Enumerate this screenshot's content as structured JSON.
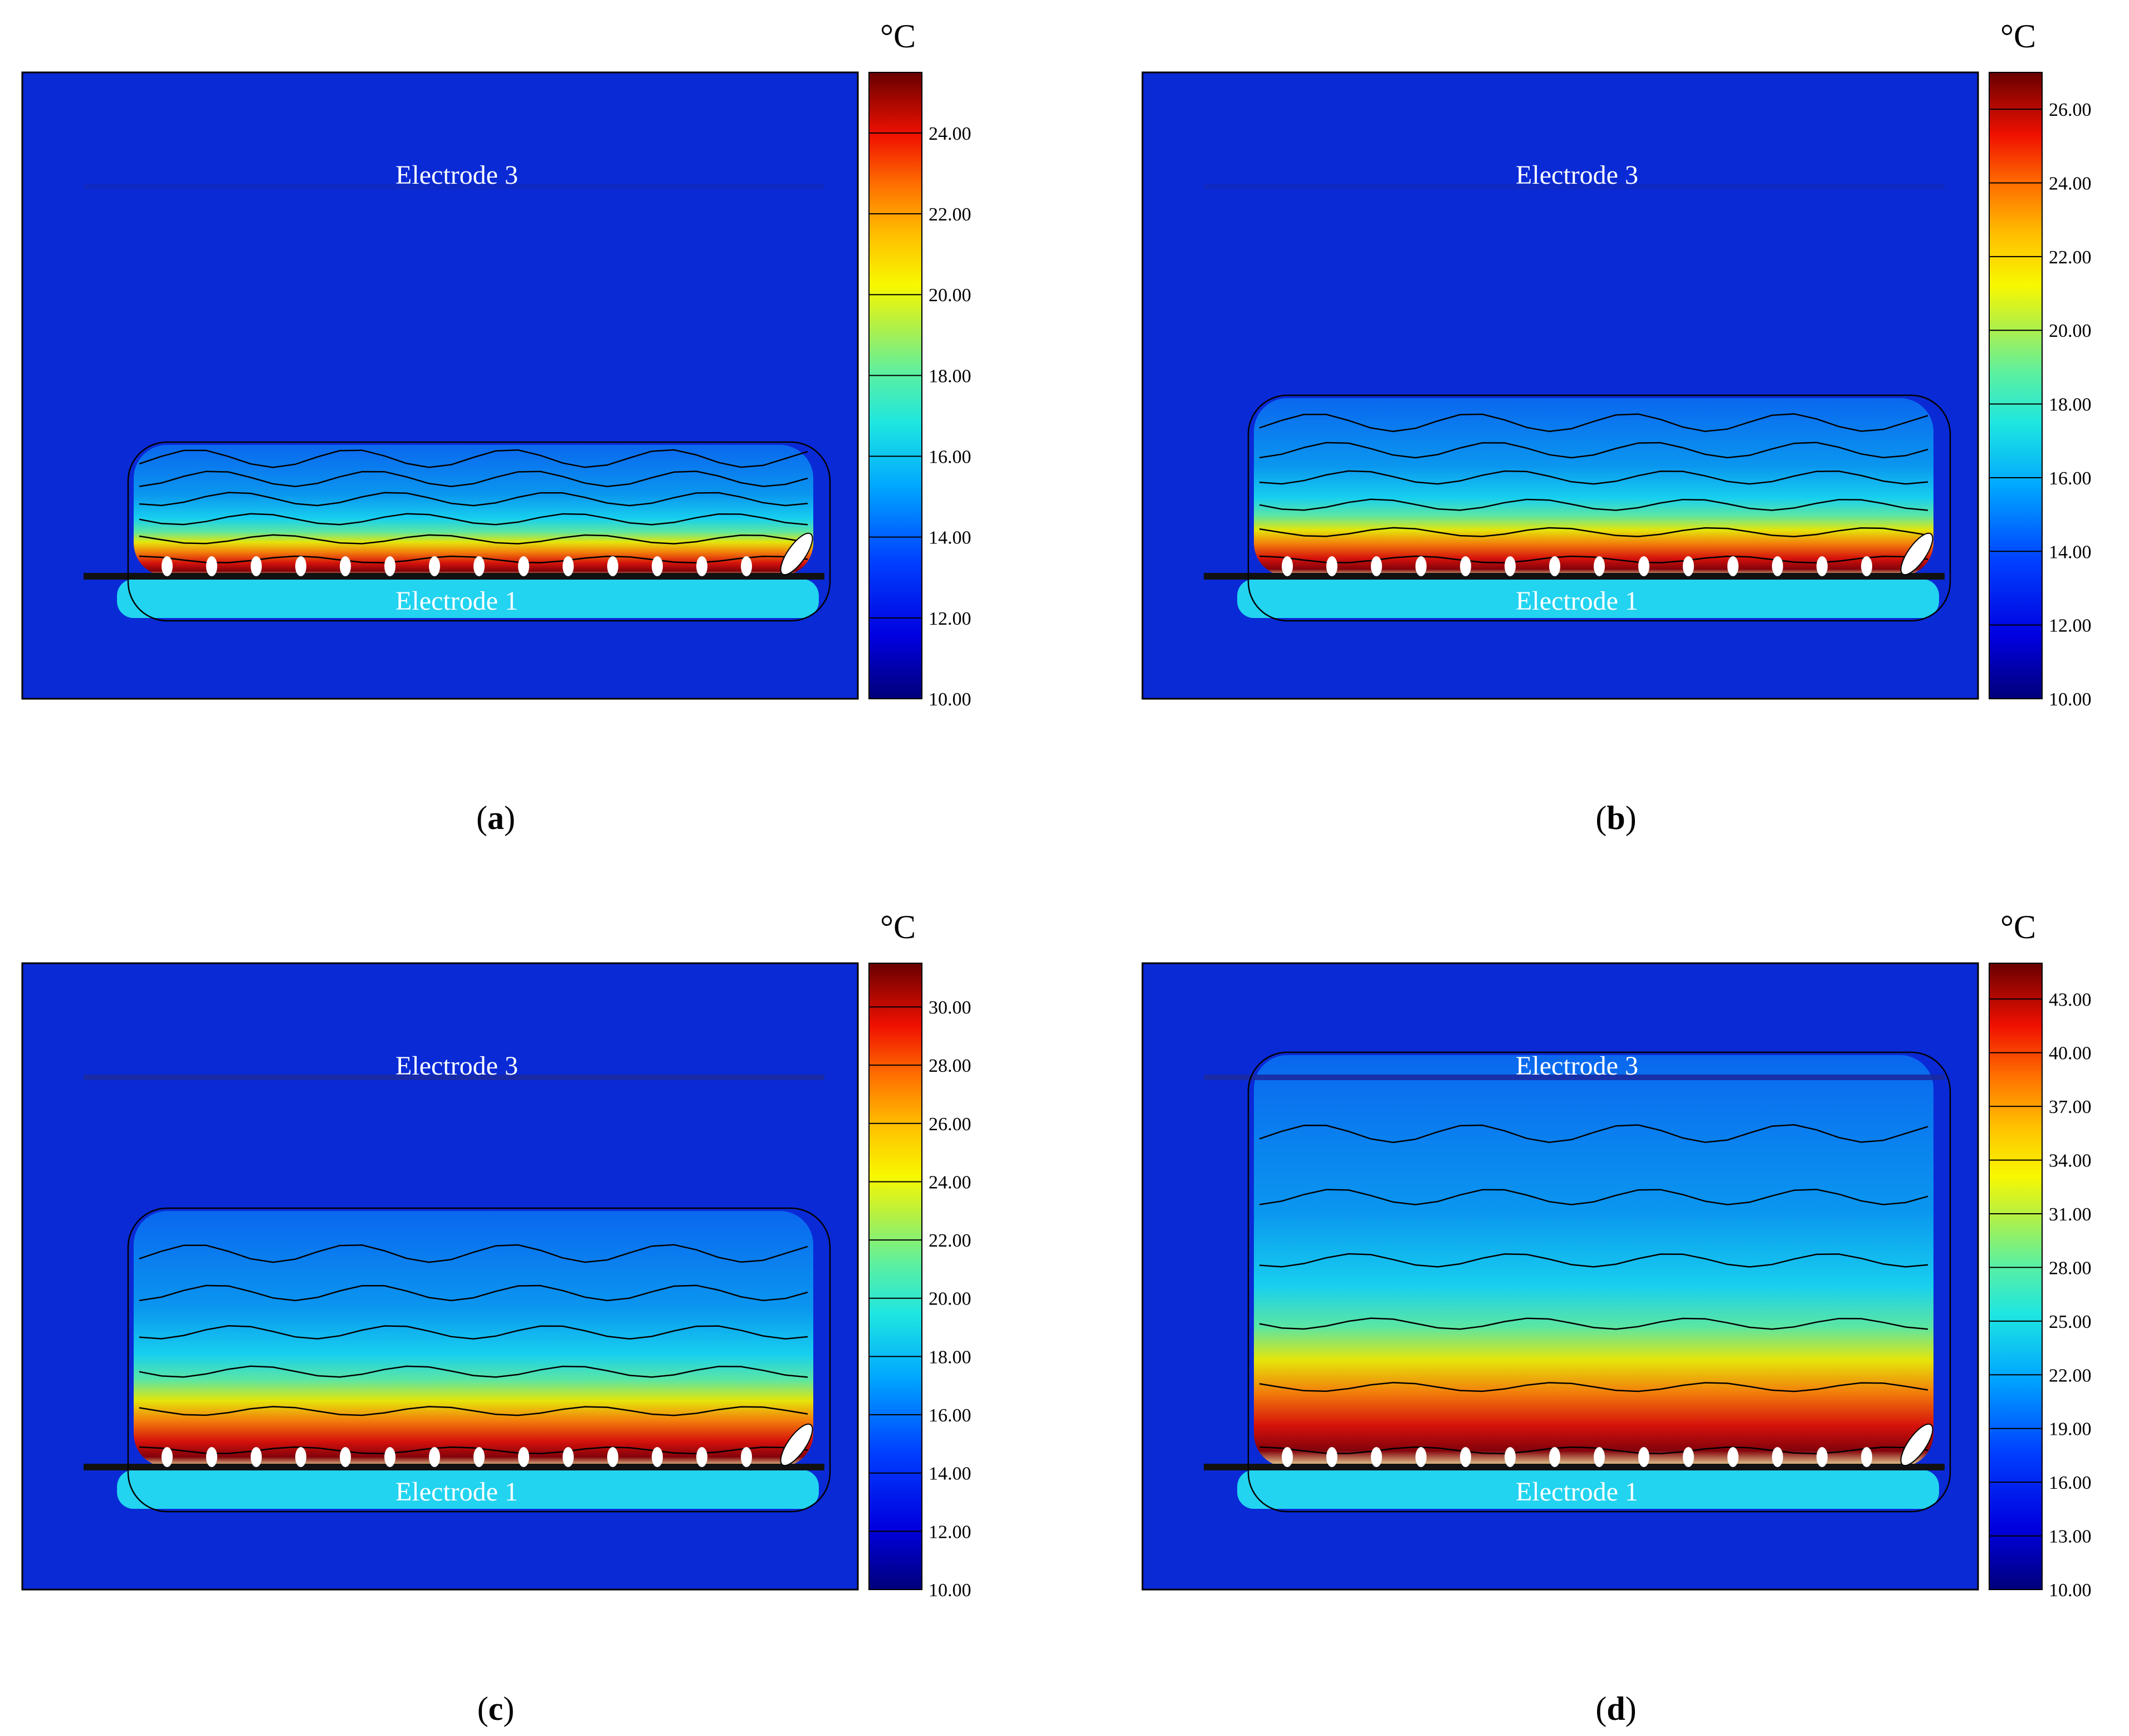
{
  "panels": [
    {
      "id": "a",
      "caption_letter": "a",
      "unit": "°C",
      "electrode_top": "Electrode 3",
      "electrode_bottom": "Electrode 1",
      "colorbar": {
        "min": 10,
        "max": 25.5,
        "ticks": [
          "10.00",
          "12.00",
          "14.00",
          "16.00",
          "18.00",
          "20.00",
          "22.00",
          "24.00"
        ]
      },
      "hot_fraction": 0.28
    },
    {
      "id": "b",
      "caption_letter": "b",
      "unit": "°C",
      "electrode_top": "Electrode 3",
      "electrode_bottom": "Electrode 1",
      "colorbar": {
        "min": 10,
        "max": 27,
        "ticks": [
          "10.00",
          "12.00",
          "14.00",
          "16.00",
          "18.00",
          "20.00",
          "22.00",
          "24.00",
          "26.00"
        ]
      },
      "hot_fraction": 0.4
    },
    {
      "id": "c",
      "caption_letter": "c",
      "unit": "°C",
      "electrode_top": "Electrode 3",
      "electrode_bottom": "Electrode 1",
      "colorbar": {
        "min": 10,
        "max": 31.5,
        "ticks": [
          "10.00",
          "12.00",
          "14.00",
          "16.00",
          "18.00",
          "20.00",
          "22.00",
          "24.00",
          "26.00",
          "28.00",
          "30.00"
        ]
      },
      "hot_fraction": 0.6
    },
    {
      "id": "d",
      "caption_letter": "d",
      "unit": "°C",
      "electrode_top": "Electrode 3",
      "electrode_bottom": "Electrode 1",
      "colorbar": {
        "min": 10,
        "max": 45,
        "ticks": [
          "10.00",
          "13.00",
          "16.00",
          "19.00",
          "22.00",
          "25.00",
          "28.00",
          "31.00",
          "34.00",
          "37.00",
          "40.00",
          "43.00"
        ]
      },
      "hot_fraction": 1.0
    }
  ]
}
